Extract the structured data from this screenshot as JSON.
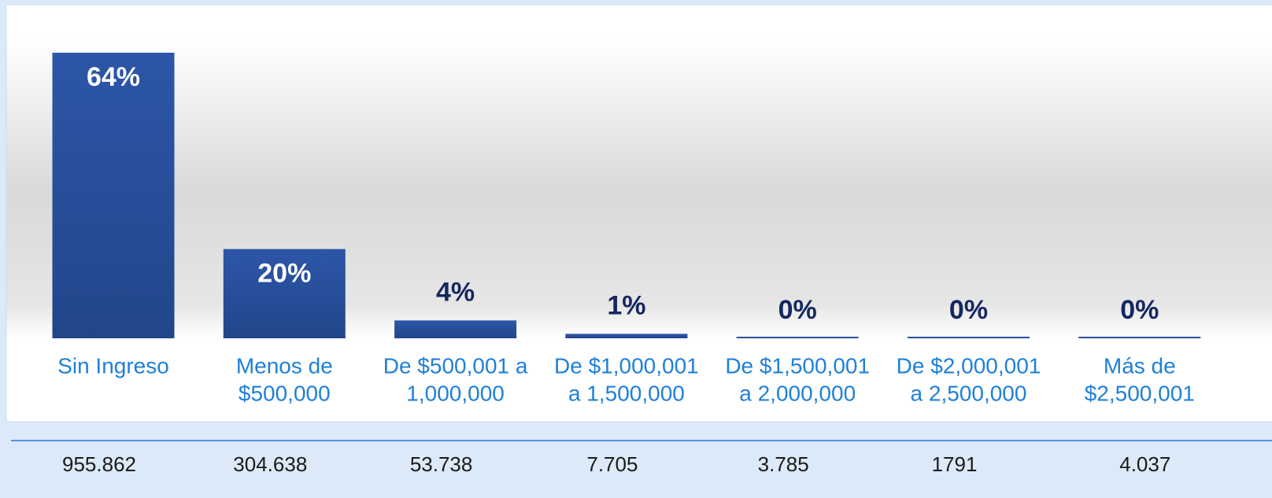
{
  "chart_data": {
    "type": "bar",
    "categories": [
      [
        "Sin Ingreso"
      ],
      [
        "Menos de",
        "$500,000"
      ],
      [
        "De $500,001 a",
        "1,000,000"
      ],
      [
        "De $1,000,001",
        "a 1,500,000"
      ],
      [
        "De $1,500,001",
        "a 2,000,000"
      ],
      [
        "De $2,000,001",
        "a 2,500,000"
      ],
      [
        "Más de",
        "$2,500,001"
      ]
    ],
    "values": [
      64,
      20,
      4,
      1,
      0,
      0,
      0
    ],
    "value_labels": [
      "64%",
      "20%",
      "4%",
      "1%",
      "0%",
      "0%",
      "0%"
    ],
    "color": "#2a4f9e",
    "totals": [
      "955.862",
      "304.638",
      "53.738",
      "7.705",
      "3.785",
      "1791",
      "4.037"
    ]
  }
}
